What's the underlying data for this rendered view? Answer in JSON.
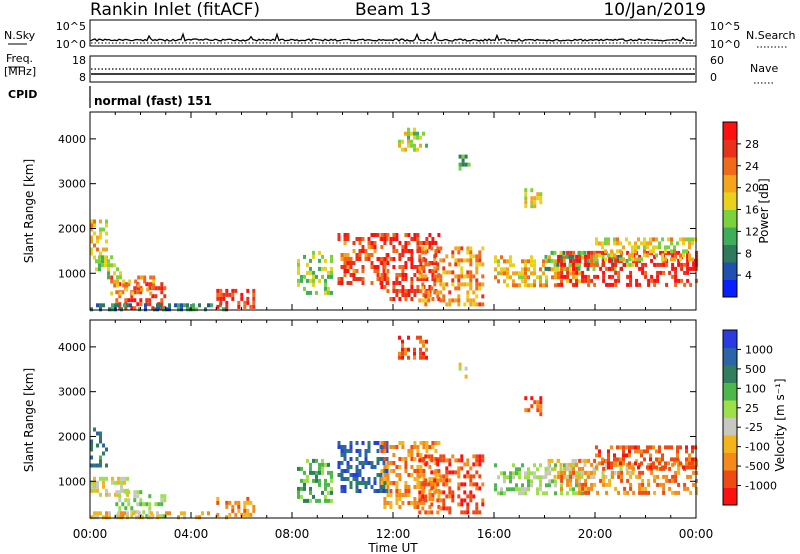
{
  "header": {
    "station": "Rankin Inlet (fitACF)",
    "beam": "Beam 13",
    "date": "10/Jan/2019"
  },
  "summary_panels": {
    "nsky": {
      "left_label": "N.Sky",
      "right_label": "N.Search",
      "left_ticks": [
        "10^5",
        "10^0"
      ],
      "right_ticks": [
        "10^5",
        "10^0"
      ]
    },
    "freq": {
      "left_label_line1": "Freq.",
      "left_label_line2": "[MHz]",
      "right_label": "Nave",
      "left_ticks": [
        "18",
        "8"
      ],
      "right_ticks": [
        "60",
        "0"
      ]
    },
    "cpid": {
      "label": "CPID",
      "value": "normal (fast) 151"
    }
  },
  "chart_data": [
    {
      "type": "heatmap",
      "panel": "power",
      "ylabel": "Slant Range [km]",
      "ylim": [
        180,
        4600
      ],
      "yticks": [
        1000,
        2000,
        3000,
        4000
      ],
      "xlim": [
        0,
        24
      ],
      "colorbar": {
        "label": "Power [dB]",
        "ticks": [
          "28",
          "24",
          "20",
          "16",
          "12",
          "8",
          "4"
        ],
        "range": [
          0,
          32
        ],
        "colors": [
          "#0a1eff",
          "#1f4fb0",
          "#2f7a5c",
          "#3fae5a",
          "#7bd23c",
          "#e8d21c",
          "#f4a51c",
          "#ef6a1a",
          "#e8321a",
          "#ff1010"
        ]
      },
      "regions": [
        {
          "t": [
            0.0,
            0.7
          ],
          "r": [
            1350,
            2200
          ],
          "v": 20
        },
        {
          "t": [
            0.2,
            1.2
          ],
          "r": [
            900,
            1400
          ],
          "v": 14
        },
        {
          "t": [
            1.0,
            3.0
          ],
          "r": [
            250,
            800
          ],
          "v": 28
        },
        {
          "t": [
            0.8,
            2.5
          ],
          "r": [
            550,
            950
          ],
          "v": 22
        },
        {
          "t": [
            0.0,
            5.5
          ],
          "r": [
            190,
            330
          ],
          "v": 8
        },
        {
          "t": [
            5.0,
            6.5
          ],
          "r": [
            230,
            650
          ],
          "v": 28
        },
        {
          "t": [
            8.2,
            9.6
          ],
          "r": [
            600,
            1500
          ],
          "v": 14
        },
        {
          "t": [
            9.8,
            11.8
          ],
          "r": [
            800,
            1900
          ],
          "v": 27
        },
        {
          "t": [
            11.5,
            13.8
          ],
          "r": [
            400,
            1900
          ],
          "v": 29
        },
        {
          "t": [
            13.0,
            15.5
          ],
          "r": [
            300,
            1600
          ],
          "v": 23
        },
        {
          "t": [
            12.2,
            13.3
          ],
          "r": [
            3800,
            4250
          ],
          "v": 16
        },
        {
          "t": [
            14.6,
            15.0
          ],
          "r": [
            3300,
            3650
          ],
          "v": 10
        },
        {
          "t": [
            17.2,
            17.8
          ],
          "r": [
            2500,
            2900
          ],
          "v": 18
        },
        {
          "t": [
            16.0,
            19.5
          ],
          "r": [
            700,
            1400
          ],
          "v": 20
        },
        {
          "t": [
            18.0,
            21.5
          ],
          "r": [
            1100,
            1500
          ],
          "v": 12
        },
        {
          "t": [
            18.5,
            24.0
          ],
          "r": [
            700,
            1500
          ],
          "v": 30
        },
        {
          "t": [
            20.0,
            24.0
          ],
          "r": [
            1300,
            1800
          ],
          "v": 19
        }
      ]
    },
    {
      "type": "heatmap",
      "panel": "velocity",
      "ylabel": "Slant Range [km]",
      "xlabel": "Time UT",
      "ylim": [
        180,
        4600
      ],
      "yticks": [
        1000,
        2000,
        3000,
        4000
      ],
      "xlim": [
        0,
        24
      ],
      "xticks": [
        "00:00",
        "04:00",
        "08:00",
        "12:00",
        "16:00",
        "20:00",
        "00:00"
      ],
      "colorbar": {
        "label": "Velocity [m s⁻¹]",
        "ticks": [
          "1000",
          "500",
          "100",
          "25",
          "-25",
          "-100",
          "-500",
          "-1000"
        ],
        "colors": [
          "#2a3ce0",
          "#2c64a8",
          "#2f7f5e",
          "#4db84a",
          "#9de04a",
          "#c8c8c0",
          "#f4b41c",
          "#f48a1a",
          "#ef4a14",
          "#ff1010"
        ]
      },
      "regions": [
        {
          "t": [
            0.0,
            0.7
          ],
          "r": [
            1350,
            2200
          ],
          "c": 2
        },
        {
          "t": [
            0.0,
            1.5
          ],
          "r": [
            700,
            1100
          ],
          "c": 5
        },
        {
          "t": [
            1.0,
            3.0
          ],
          "r": [
            250,
            800
          ],
          "c": 4
        },
        {
          "t": [
            0.0,
            5.5
          ],
          "r": [
            190,
            330
          ],
          "c": 6
        },
        {
          "t": [
            5.0,
            6.5
          ],
          "r": [
            230,
            650
          ],
          "c": 7
        },
        {
          "t": [
            8.2,
            9.6
          ],
          "r": [
            600,
            1500
          ],
          "c": 3
        },
        {
          "t": [
            9.8,
            11.8
          ],
          "r": [
            800,
            1900
          ],
          "c": 1
        },
        {
          "t": [
            11.5,
            13.8
          ],
          "r": [
            400,
            1900
          ],
          "c": 7
        },
        {
          "t": [
            13.0,
            15.5
          ],
          "r": [
            300,
            1600
          ],
          "c": 8
        },
        {
          "t": [
            12.2,
            13.3
          ],
          "r": [
            3800,
            4250
          ],
          "c": 8
        },
        {
          "t": [
            14.6,
            15.0
          ],
          "r": [
            3300,
            3650
          ],
          "c": 5
        },
        {
          "t": [
            17.2,
            17.8
          ],
          "r": [
            2500,
            2900
          ],
          "c": 8
        },
        {
          "t": [
            16.0,
            19.5
          ],
          "r": [
            700,
            1400
          ],
          "c": 4
        },
        {
          "t": [
            18.0,
            21.5
          ],
          "r": [
            1100,
            1500
          ],
          "c": 5
        },
        {
          "t": [
            18.5,
            24.0
          ],
          "r": [
            700,
            1500
          ],
          "c": 7
        },
        {
          "t": [
            20.0,
            24.0
          ],
          "r": [
            1300,
            1800
          ],
          "c": 8
        }
      ]
    }
  ]
}
